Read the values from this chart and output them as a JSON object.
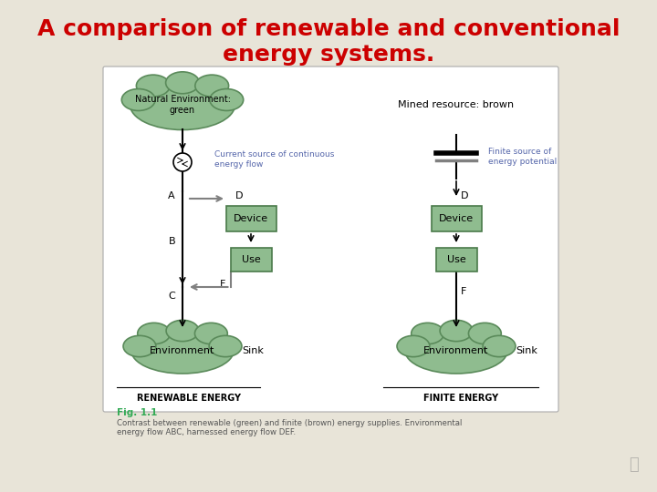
{
  "title_line1": "A comparison of renewable and conventional",
  "title_line2": "energy systems.",
  "title_color": "#cc0000",
  "title_fontsize": 18,
  "bg_color": "#e8e4d8",
  "fig_caption": "Fig. 1.1",
  "caption_text": "Contrast between renewable (green) and finite (brown) energy supplies. Environmental\nenergy flow ABC, harnessed energy flow DEF.",
  "green_fill": "#8fbc8f",
  "green_edge": "#5a8a5a",
  "box_fill": "#8fbc8f",
  "box_edge": "#4a7a4a",
  "renewable_label": "RENEWABLE ENERGY",
  "finite_label": "FINITE ENERGY",
  "left_cloud_text": "Natural Environment:\ngreen",
  "left_env_text": "Environment",
  "right_env_text": "Environment",
  "device_text": "Device",
  "use_text": "Use",
  "current_source_text": "Current source of continuous\nenergy flow",
  "finite_source_text": "Finite source of\nenergy potential",
  "mined_text": "Mined resource: brown",
  "sink_text": "Sink",
  "label_color": "#5566aa"
}
